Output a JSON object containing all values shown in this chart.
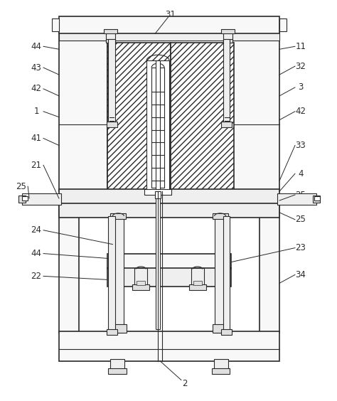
{
  "background_color": "#ffffff",
  "line_color": "#2a2a2a",
  "face_light": "#f8f8f8",
  "face_mid": "#efefef",
  "face_dark": "#e0e0e0"
}
